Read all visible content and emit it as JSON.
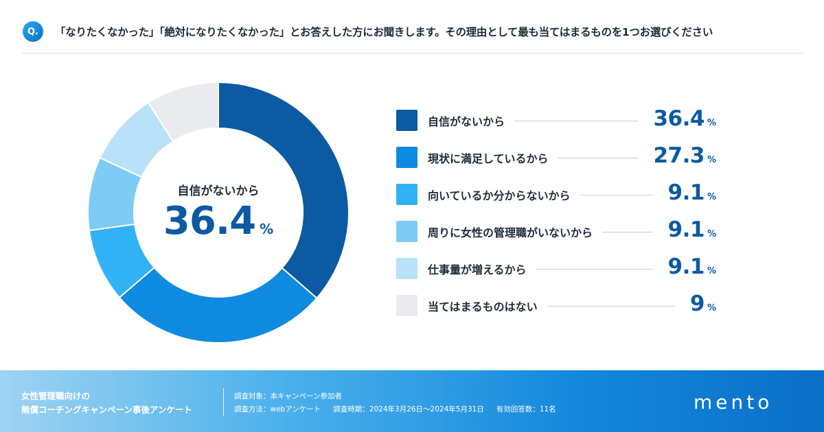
{
  "question": {
    "icon_label": "Q.",
    "text": "「なりたくなかった」「絶対になりたくなかった」とお答えした方にお聞きします。その理由として最も当てはまるものを1つお選びください"
  },
  "center": {
    "label": "自信がないから",
    "value": "36.4",
    "unit": "%"
  },
  "chart_data": {
    "type": "pie",
    "subtype": "donut",
    "title": "「なりたくなかった」「絶対になりたくなかった」とお答えした方にお聞きします。その理由として最も当てはまるものを1つお選びください",
    "unit": "%",
    "categories": [
      "自信がないから",
      "現状に満足しているから",
      "向いているか分からないから",
      "周りに女性の管理職がいないから",
      "仕事量が増えるから",
      "当てはまるものはない"
    ],
    "values": [
      36.4,
      27.3,
      9.1,
      9.1,
      9.1,
      9
    ],
    "value_labels": [
      "36.4",
      "27.3",
      "9.1",
      "9.1",
      "9.1",
      "9"
    ],
    "colors": [
      "#0b5aa3",
      "#0e8ae0",
      "#30b2f5",
      "#7ecbf5",
      "#b9e2fa",
      "#e9ebee"
    ],
    "legend": "right"
  },
  "footer": {
    "title_line1": "女性管理職向けの",
    "title_line2": "無償コーチングキャンペーン事後アンケート",
    "target": "調査対象：本キャンペーン参加者",
    "method": "調査方法：webアンケート",
    "period": "調査時期：2024年3月26日～2024年5月31日",
    "responses": "有効回答数：11名"
  },
  "logo": "mento"
}
